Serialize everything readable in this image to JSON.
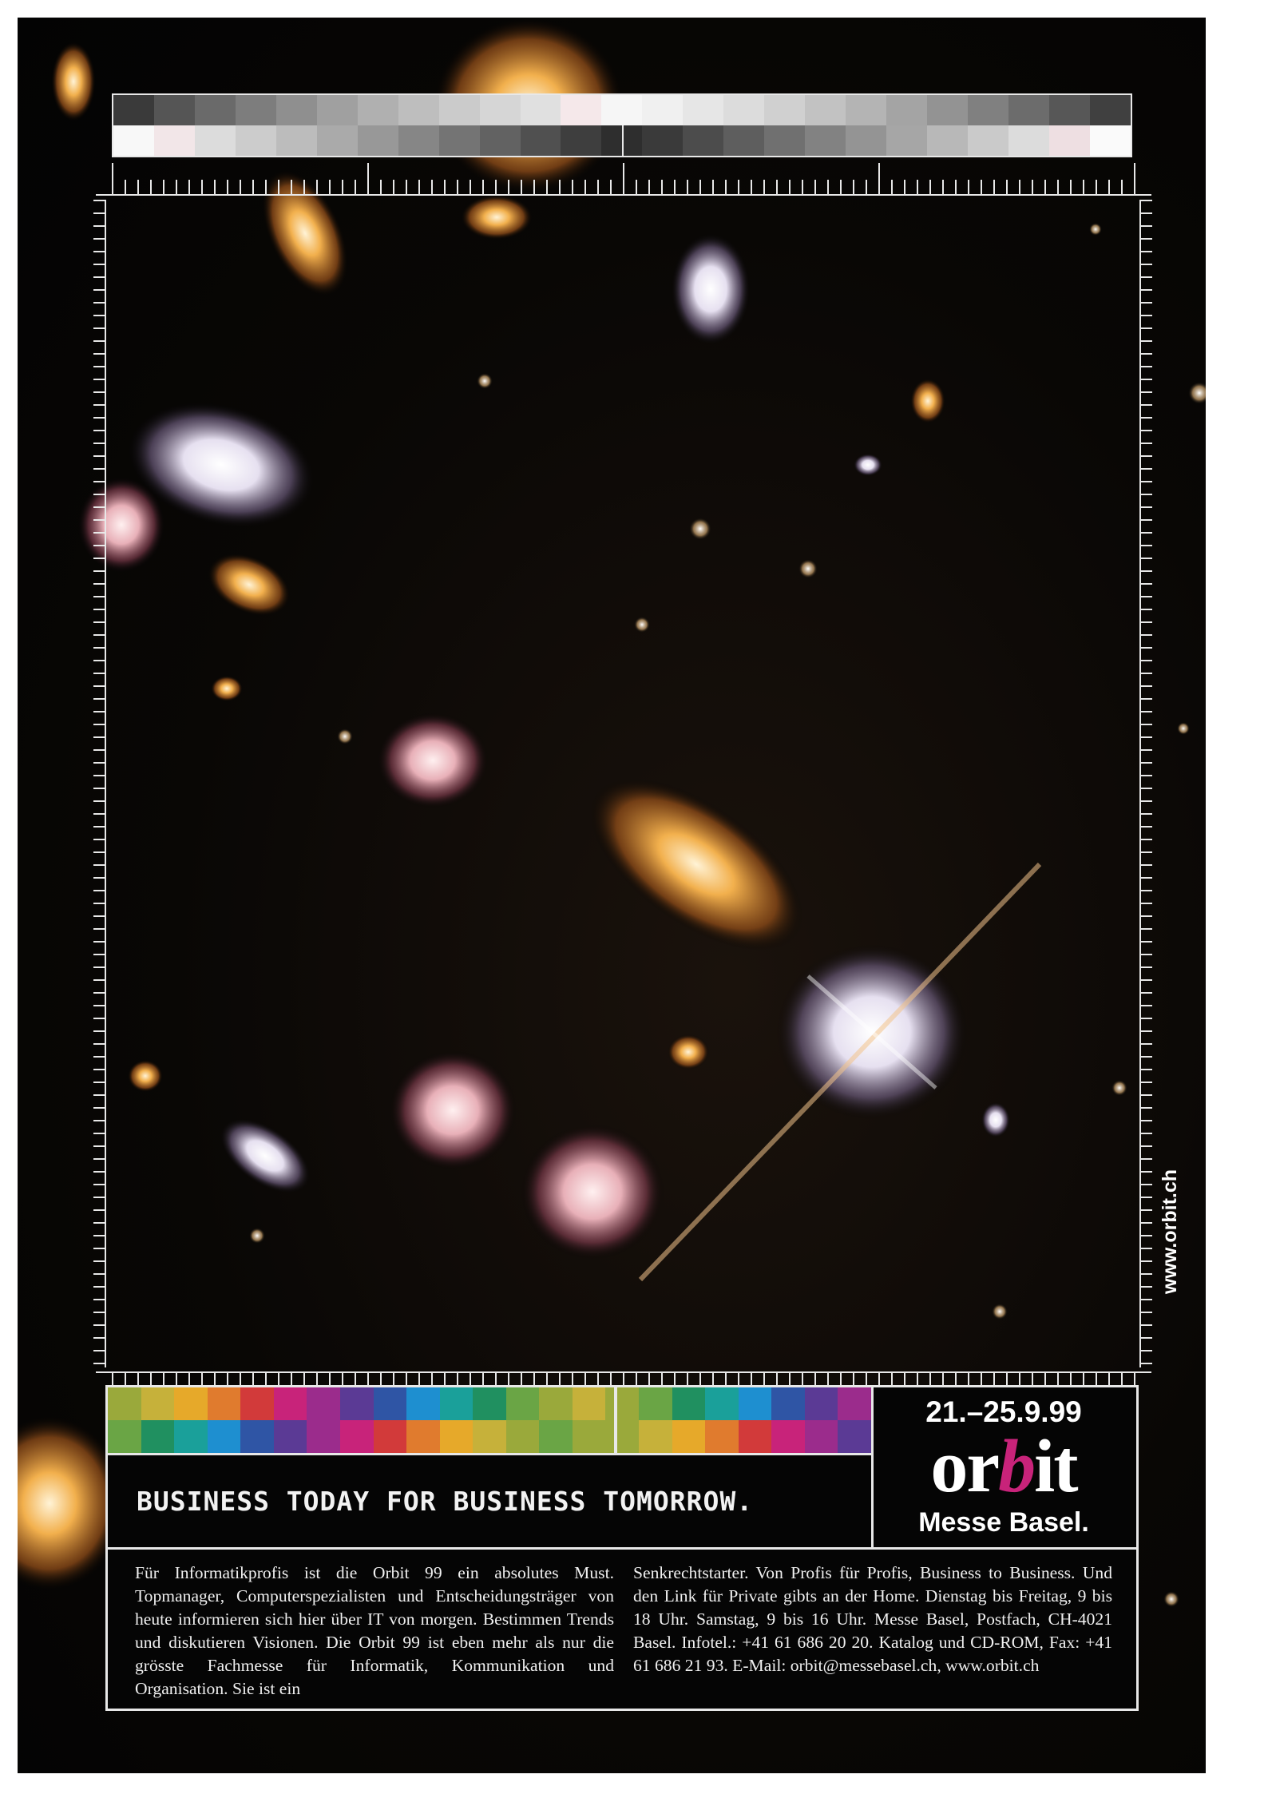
{
  "colors": {
    "background": "#050505",
    "frame": "#e8e8e8",
    "accent": "#c8237a",
    "text": "#ffffff"
  },
  "top_strip": {
    "row1": [
      "#3a3a3a",
      "#555",
      "#6a6a6a",
      "#7d7d7d",
      "#8f8f8f",
      "#a0a0a0",
      "#b0b0b0",
      "#bebebe",
      "#cbcbcb",
      "#d6d6d6",
      "#e0e0e0",
      "#f5e8ea",
      "#f6f6f6",
      "#f0f0f0",
      "#e6e6e6",
      "#dcdcdc",
      "#d0d0d0",
      "#c2c2c2",
      "#b4b4b4",
      "#a4a4a4",
      "#939393",
      "#808080",
      "#6c6c6c",
      "#575757",
      "#404040"
    ],
    "row2": [
      "#f8f8f8",
      "#f2e6e8",
      "#dcdcdc",
      "#cccccc",
      "#bcbcbc",
      "#aaaaaa",
      "#989898",
      "#868686",
      "#747474",
      "#626262",
      "#505050",
      "#3e3e3e",
      "#2e2e2e",
      "#3a3a3a",
      "#4c4c4c",
      "#5e5e5e",
      "#707070",
      "#828282",
      "#949494",
      "#a6a6a6",
      "#b8b8b8",
      "#cacaca",
      "#dcdcdc",
      "#eedfe2",
      "#fafafa"
    ]
  },
  "panel_colors": {
    "row1": [
      "#9aa93b",
      "#c6b13a",
      "#e6a92a",
      "#e07b2e",
      "#d23a3a",
      "#c8237a",
      "#9b2c8c",
      "#5b3a95",
      "#2f55a5",
      "#1e8fd0",
      "#1aa09a",
      "#209060",
      "#6aa545",
      "#9aa93b",
      "#c6b13a",
      "#9aa93b",
      "#6aa545",
      "#209060",
      "#1aa09a",
      "#1e8fd0",
      "#2f55a5",
      "#5b3a95",
      "#9b2c8c"
    ],
    "row2": [
      "#6aa545",
      "#209060",
      "#1aa09a",
      "#1e8fd0",
      "#2f55a5",
      "#5b3a95",
      "#9b2c8c",
      "#c8237a",
      "#d23a3a",
      "#e07b2e",
      "#e6a92a",
      "#c6b13a",
      "#9aa93b",
      "#6aa545",
      "#9aa93b",
      "#9aa93b",
      "#c6b13a",
      "#e6a92a",
      "#e07b2e",
      "#d23a3a",
      "#c8237a",
      "#9b2c8c",
      "#5b3a95"
    ]
  },
  "event": {
    "dates": "21.–25.9.99",
    "logo_prefix": "or",
    "logo_accent": "b",
    "logo_suffix": "it",
    "venue": "Messe Basel."
  },
  "slogan": "BUSINESS TODAY FOR BUSINESS TOMORROW.",
  "body_left": "Für Informatikprofis ist die Orbit 99 ein absolutes Must. Topmanager, Computerspezialisten und Entscheidungsträger von heute informieren sich hier über IT von morgen. Bestimmen Trends und diskutieren Visionen. Die Orbit 99 ist eben mehr als nur die grösste Fachmesse für Informatik, Kommunikation und Organisation. Sie ist ein",
  "body_right": "Senkrechtstarter. Von Profis für Profis, Business to Business. Und den Link für Private gibts an der Home. Dienstag bis Freitag, 9 bis 18 Uhr. Samstag, 9 bis 16 Uhr. Messe Basel, Postfach, CH-4021 Basel. Infotel.: +41 61 686 20 20. Katalog und CD-ROM, Fax: +41 61 686 21 93. E-Mail: orbit@messebasel.ch, www.orbit.ch",
  "side_url": "www.orbit.ch"
}
